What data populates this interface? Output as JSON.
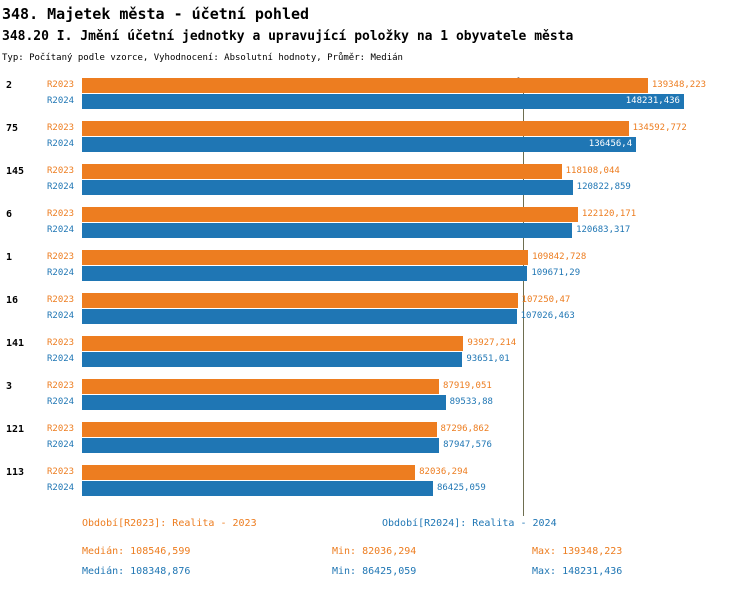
{
  "header": {
    "title1": "348. Majetek města - účetní pohled",
    "title2": "348.20 I. Jmění účetní jednotky a upravující položky na 1 obyvatele města",
    "subtitle": "Typ: Počítaný podle vzorce, Vyhodnocení: Absolutní hodnoty, Průměr: Medián"
  },
  "colors": {
    "series_2023": "#ED7D20",
    "series_2024": "#1F76B4",
    "median_line": "#6E6E50",
    "inside_label": "#FFFFFF"
  },
  "chart_data": {
    "type": "bar",
    "orientation": "horizontal",
    "title": "348.20 I. Jmění účetní jednotky a upravující položky na 1 obyvatele města",
    "axis_label_zero": "0",
    "xlim": [
      0,
      164000
    ],
    "median_line_value": 108546.599,
    "series": [
      "R2023",
      "R2024"
    ],
    "legend_position": "bottom",
    "groups": [
      {
        "category": "2",
        "values": [
          {
            "series": "R2023",
            "value": 139348.223,
            "display": "139348,223",
            "inside": false
          },
          {
            "series": "R2024",
            "value": 148231.436,
            "display": "148231,436",
            "inside": true
          }
        ]
      },
      {
        "category": "75",
        "values": [
          {
            "series": "R2023",
            "value": 134592.772,
            "display": "134592,772",
            "inside": false
          },
          {
            "series": "R2024",
            "value": 136456.4,
            "display": "136456,4",
            "inside": true
          }
        ]
      },
      {
        "category": "145",
        "values": [
          {
            "series": "R2023",
            "value": 118108.044,
            "display": "118108,044",
            "inside": false
          },
          {
            "series": "R2024",
            "value": 120822.859,
            "display": "120822,859",
            "inside": false
          }
        ]
      },
      {
        "category": "6",
        "values": [
          {
            "series": "R2023",
            "value": 122120.171,
            "display": "122120,171",
            "inside": false
          },
          {
            "series": "R2024",
            "value": 120683.317,
            "display": "120683,317",
            "inside": false
          }
        ]
      },
      {
        "category": "1",
        "values": [
          {
            "series": "R2023",
            "value": 109842.728,
            "display": "109842,728",
            "inside": false
          },
          {
            "series": "R2024",
            "value": 109671.29,
            "display": "109671,29",
            "inside": false
          }
        ]
      },
      {
        "category": "16",
        "values": [
          {
            "series": "R2023",
            "value": 107250.47,
            "display": "107250,47",
            "inside": false
          },
          {
            "series": "R2024",
            "value": 107026.463,
            "display": "107026,463",
            "inside": false
          }
        ]
      },
      {
        "category": "141",
        "values": [
          {
            "series": "R2023",
            "value": 93927.214,
            "display": "93927,214",
            "inside": false
          },
          {
            "series": "R2024",
            "value": 93651.01,
            "display": "93651,01",
            "inside": false
          }
        ]
      },
      {
        "category": "3",
        "values": [
          {
            "series": "R2023",
            "value": 87919.051,
            "display": "87919,051",
            "inside": false
          },
          {
            "series": "R2024",
            "value": 89533.88,
            "display": "89533,88",
            "inside": false
          }
        ]
      },
      {
        "category": "121",
        "values": [
          {
            "series": "R2023",
            "value": 87296.862,
            "display": "87296,862",
            "inside": false
          },
          {
            "series": "R2024",
            "value": 87947.576,
            "display": "87947,576",
            "inside": false
          }
        ]
      },
      {
        "category": "113",
        "values": [
          {
            "series": "R2023",
            "value": 82036.294,
            "display": "82036,294",
            "inside": false
          },
          {
            "series": "R2024",
            "value": 86425.059,
            "display": "86425,059",
            "inside": false
          }
        ]
      }
    ]
  },
  "footer": {
    "legend_2023": "Období[R2023]: Realita - 2023",
    "legend_2024": "Období[R2024]: Realita - 2024",
    "stats_2023": {
      "median": "Medián: 108546,599",
      "min": "Min: 82036,294",
      "max": "Max: 139348,223"
    },
    "stats_2024": {
      "median": "Medián: 108348,876",
      "min": "Min: 86425,059",
      "max": "Max: 148231,436"
    }
  }
}
